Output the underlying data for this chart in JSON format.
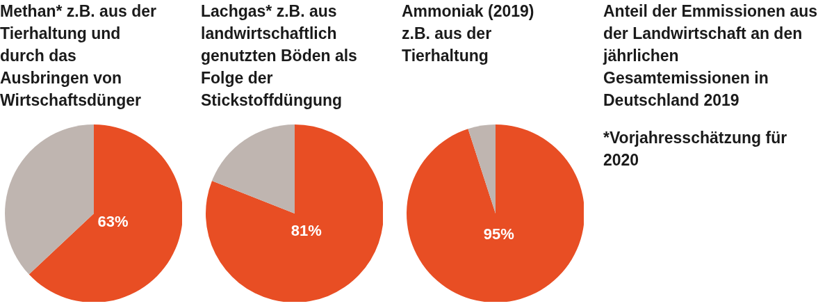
{
  "chart_data": [
    {
      "type": "pie",
      "title": "Methan* z.B. aus der Tierhaltung und durch das Ausbringen von Wirtschaftsdünger",
      "categories": [
        null,
        null
      ],
      "values": [
        63,
        37
      ],
      "colors": [
        "#e84e24",
        "#bfb5b0"
      ],
      "value_labels": [
        "63%",
        null
      ]
    },
    {
      "type": "pie",
      "title": "Lachgas* z.B. aus landwirtschaftlich genutzten Böden als Folge der Stickstoffdüngung",
      "categories": [
        null,
        null
      ],
      "values": [
        81,
        19
      ],
      "colors": [
        "#e84e24",
        "#bfb5b0"
      ],
      "value_labels": [
        "81%",
        null
      ]
    },
    {
      "type": "pie",
      "title": "Ammoniak (2019) z.B. aus der Tierhaltung",
      "categories": [
        null,
        null
      ],
      "values": [
        95,
        5
      ],
      "colors": [
        "#e84e24",
        "#bfb5b0"
      ],
      "value_labels": [
        "95%",
        null
      ]
    },
    {
      "type": "other",
      "title": "Anteil der Emmissionen aus der Landwirtschaft an den jährlichen Gesamtemissionen in Deutschland 2019",
      "annotations": [
        "*Vorjahresschätzung für 2020"
      ]
    }
  ]
}
